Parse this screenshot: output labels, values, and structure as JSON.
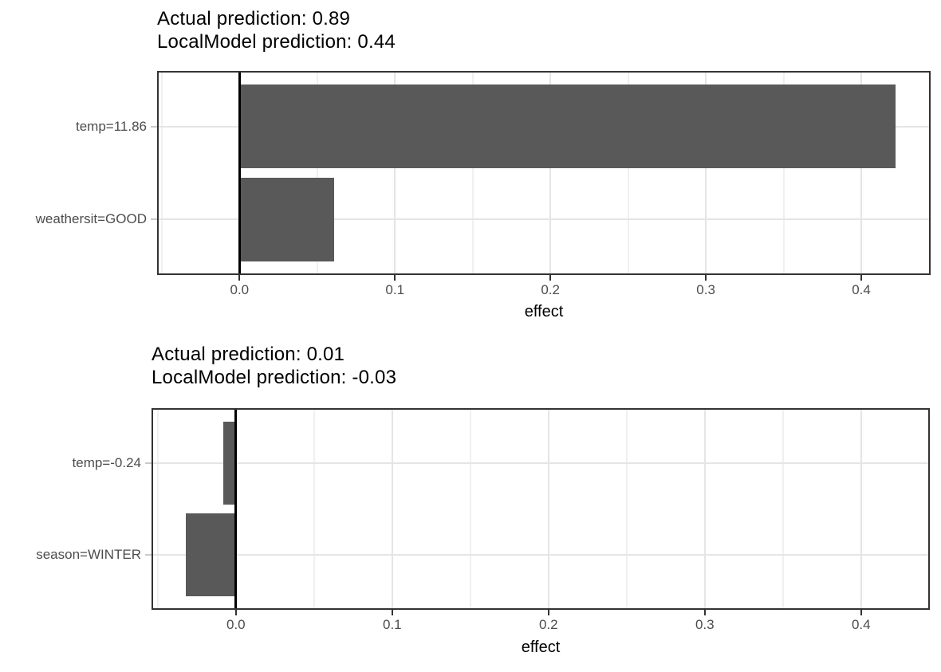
{
  "figure": {
    "background": "#ffffff",
    "description": "Two stacked LocalModel explanation bar charts"
  },
  "style": {
    "bar_color": "#595959",
    "panel_border_color": "#333333",
    "grid_major_color": "#e5e5e5",
    "grid_minor_color": "#f0f0f0",
    "zero_line_color": "#000000",
    "x_tick_color": "#333333",
    "y_tick_color": "#c9c9c9",
    "tick_label_color": "#4d4d4d",
    "title_color": "#000000"
  },
  "chart_data": [
    {
      "type": "bar",
      "orientation": "horizontal",
      "title_lines": [
        "Actual prediction: 0.89",
        "LocalModel prediction: 0.44"
      ],
      "categories": [
        "temp=11.86",
        "weathersit=GOOD"
      ],
      "values": [
        0.422,
        0.061
      ],
      "xlabel": "effect",
      "x_ticks": [
        0,
        0.1,
        0.2,
        0.3,
        0.4
      ],
      "x_tick_labels": [
        "0.0",
        "0.1",
        "0.2",
        "0.3",
        "0.4"
      ],
      "x_minor_ticks": [
        -0.05,
        0.05,
        0.15,
        0.25,
        0.35,
        0.45
      ],
      "xlim": [
        -0.053,
        0.4446
      ],
      "zero_line": true,
      "grid": true,
      "legend": "none"
    },
    {
      "type": "bar",
      "orientation": "horizontal",
      "title_lines": [
        "Actual prediction: 0.01",
        "LocalModel prediction: -0.03"
      ],
      "categories": [
        "temp=-0.24",
        "season=WINTER"
      ],
      "values": [
        -0.008,
        -0.032
      ],
      "xlabel": "effect",
      "x_ticks": [
        0,
        0.1,
        0.2,
        0.3,
        0.4
      ],
      "x_tick_labels": [
        "0.0",
        "0.1",
        "0.2",
        "0.3",
        "0.4"
      ],
      "x_minor_ticks": [
        -0.05,
        0.05,
        0.15,
        0.25,
        0.35,
        0.45
      ],
      "xlim": [
        -0.054,
        0.444
      ],
      "zero_line": true,
      "grid": true,
      "legend": "none"
    }
  ]
}
